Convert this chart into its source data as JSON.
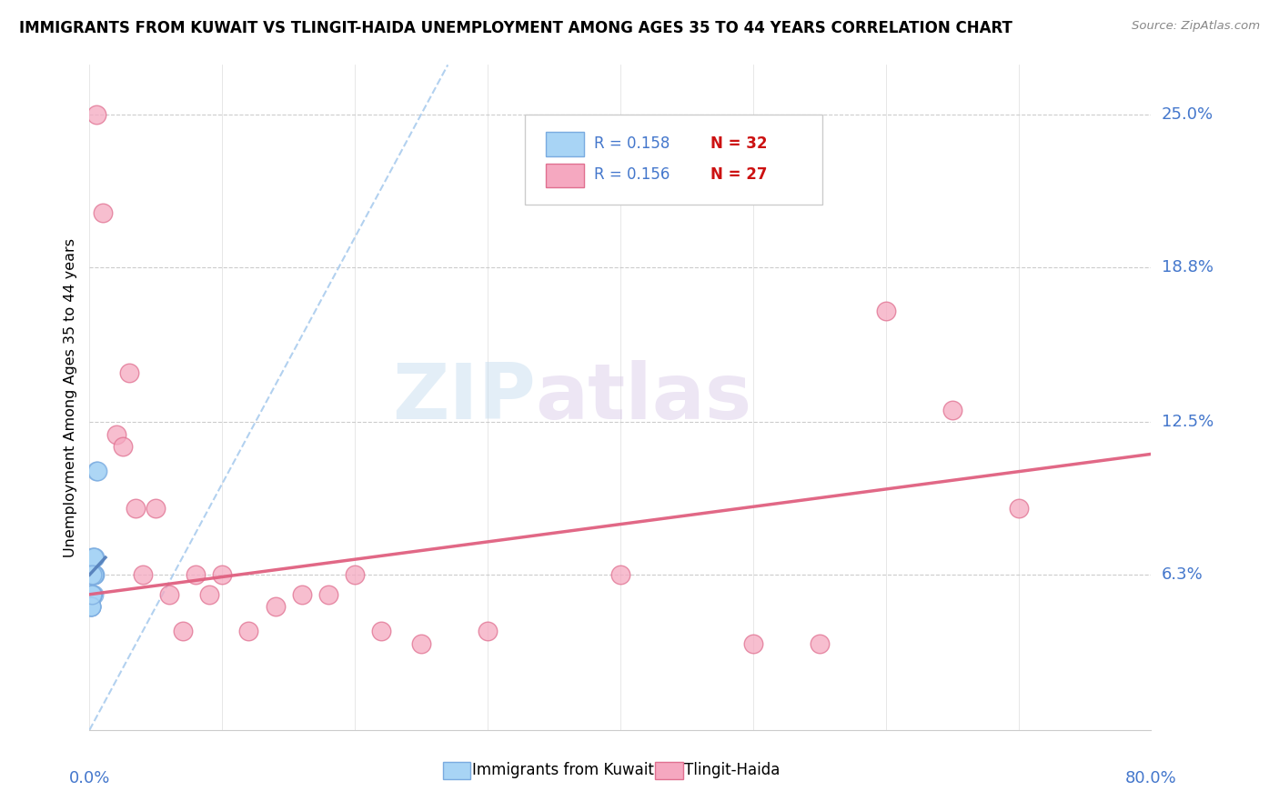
{
  "title": "IMMIGRANTS FROM KUWAIT VS TLINGIT-HAIDA UNEMPLOYMENT AMONG AGES 35 TO 44 YEARS CORRELATION CHART",
  "source": "Source: ZipAtlas.com",
  "ylabel": "Unemployment Among Ages 35 to 44 years",
  "ytick_labels": [
    "25.0%",
    "18.8%",
    "12.5%",
    "6.3%"
  ],
  "ytick_values": [
    0.25,
    0.188,
    0.125,
    0.063
  ],
  "legend_blue_R": "R = 0.158",
  "legend_blue_N": "N = 32",
  "legend_pink_R": "R = 0.156",
  "legend_pink_N": "N = 27",
  "legend_label_blue": "Immigrants from Kuwait",
  "legend_label_pink": "Tlingit-Haida",
  "blue_scatter_color": "#A8D4F5",
  "blue_edge_color": "#7AABE0",
  "pink_scatter_color": "#F5A8C0",
  "pink_edge_color": "#E07090",
  "trend_blue_color": "#5580BB",
  "trend_pink_color": "#E06080",
  "diagonal_color": "#AACCEE",
  "watermark_zip": "ZIP",
  "watermark_atlas": "atlas",
  "blue_points_x": [
    0.002,
    0.003,
    0.002,
    0.002,
    0.004,
    0.003,
    0.002,
    0.002,
    0.003,
    0.002,
    0.002,
    0.002,
    0.003,
    0.002,
    0.002,
    0.004,
    0.003,
    0.002,
    0.002,
    0.003,
    0.002,
    0.002,
    0.003,
    0.001,
    0.001,
    0.003,
    0.005,
    0.006,
    0.001,
    0.001,
    0.002,
    0.002
  ],
  "blue_points_y": [
    0.063,
    0.063,
    0.07,
    0.055,
    0.07,
    0.063,
    0.063,
    0.055,
    0.055,
    0.063,
    0.055,
    0.063,
    0.07,
    0.055,
    0.063,
    0.063,
    0.063,
    0.055,
    0.055,
    0.063,
    0.055,
    0.063,
    0.063,
    0.05,
    0.05,
    0.07,
    0.105,
    0.105,
    0.05,
    0.05,
    0.063,
    0.055
  ],
  "pink_points_x": [
    0.005,
    0.01,
    0.02,
    0.025,
    0.03,
    0.035,
    0.04,
    0.05,
    0.06,
    0.07,
    0.08,
    0.09,
    0.1,
    0.12,
    0.14,
    0.16,
    0.18,
    0.2,
    0.22,
    0.25,
    0.3,
    0.4,
    0.5,
    0.55,
    0.6,
    0.65,
    0.7
  ],
  "pink_points_y": [
    0.25,
    0.21,
    0.12,
    0.115,
    0.145,
    0.09,
    0.063,
    0.09,
    0.055,
    0.04,
    0.063,
    0.055,
    0.063,
    0.04,
    0.05,
    0.055,
    0.055,
    0.063,
    0.04,
    0.035,
    0.04,
    0.063,
    0.035,
    0.035,
    0.17,
    0.13,
    0.09
  ],
  "xlim": [
    0.0,
    0.8
  ],
  "ylim": [
    0.0,
    0.27
  ],
  "trend_pink_x0": 0.0,
  "trend_pink_x1": 0.8,
  "trend_pink_y0": 0.055,
  "trend_pink_y1": 0.112,
  "trend_blue_x0": 0.0,
  "trend_blue_x1": 0.012,
  "trend_blue_y0": 0.063,
  "trend_blue_y1": 0.07
}
